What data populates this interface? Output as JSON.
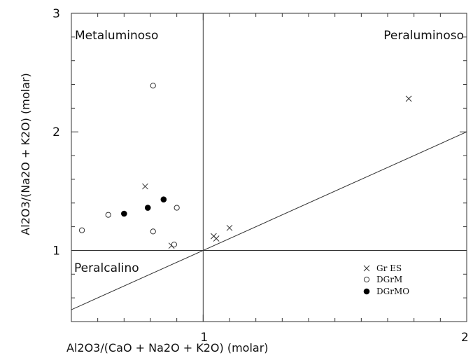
{
  "chart_data": {
    "type": "scatter",
    "title": "",
    "xlabel": "Al2O3/(CaO + Na2O + K2O)  (molar)",
    "ylabel": "Al2O3/(Na2O + K2O)  (molar)",
    "xlim": [
      0.5,
      2.0
    ],
    "ylim": [
      0.4,
      3.0
    ],
    "x_tick_labels": [
      "1",
      "2"
    ],
    "y_tick_labels": [
      "1",
      "2",
      "3"
    ],
    "grid": false,
    "legend_position": "bottom-right",
    "regions": {
      "metaluminoso": "Metaluminoso",
      "peraluminoso": "Peraluminoso",
      "peralcalino": "Peralcalino"
    },
    "reference_lines": [
      {
        "type": "vertical",
        "x": 1.0
      },
      {
        "type": "horizontal",
        "y": 1.0
      },
      {
        "type": "diagonal",
        "from": [
          0.5,
          0.5
        ],
        "to": [
          2.0,
          2.0
        ]
      }
    ],
    "series": [
      {
        "name": "Gr ES",
        "marker": "x",
        "points": [
          [
            0.78,
            1.54
          ],
          [
            0.88,
            1.04
          ],
          [
            1.04,
            1.12
          ],
          [
            1.05,
            1.1
          ],
          [
            1.1,
            1.19
          ],
          [
            1.78,
            2.28
          ]
        ]
      },
      {
        "name": "DGrM",
        "marker": "circle-open",
        "points": [
          [
            0.54,
            1.17
          ],
          [
            0.64,
            1.3
          ],
          [
            0.81,
            2.39
          ],
          [
            0.81,
            1.16
          ],
          [
            0.89,
            1.05
          ],
          [
            0.9,
            1.36
          ]
        ]
      },
      {
        "name": "DGrMO",
        "marker": "circle-filled",
        "points": [
          [
            0.7,
            1.31
          ],
          [
            0.79,
            1.36
          ],
          [
            0.85,
            1.43
          ]
        ]
      }
    ]
  }
}
